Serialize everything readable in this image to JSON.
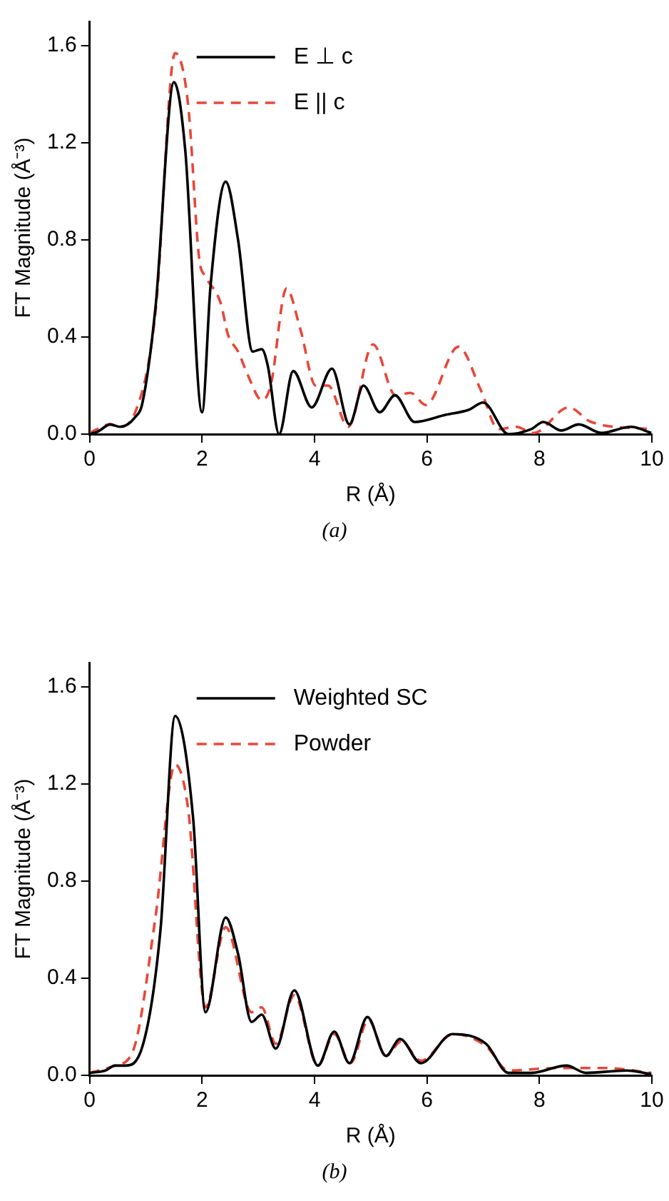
{
  "chart_data": [
    {
      "type": "line",
      "xlabel": "R (Å)",
      "ylabel": "FT Magnitude (Å⁻³)",
      "annotations": [
        "(a)"
      ],
      "xlim": [
        0,
        10
      ],
      "ylim": [
        0,
        1.7
      ],
      "xticks": [
        0,
        2,
        4,
        6,
        8,
        10
      ],
      "yticks": [
        {
          "value": 0,
          "label": "0.0"
        },
        {
          "value": 0.4,
          "label": "0.4"
        },
        {
          "value": 0.8,
          "label": "0.8"
        },
        {
          "value": 1.2,
          "label": "1.2"
        },
        {
          "value": 1.6,
          "label": "1.6"
        }
      ],
      "grid": false,
      "legend": "top",
      "marker": "none",
      "series": [
        {
          "name": "E ⊥ c",
          "color": "#000000",
          "line_style": "solid",
          "x": [
            0,
            0.14,
            0.37,
            0.54,
            0.81,
            0.94,
            1.17,
            1.5,
            1.7,
            2.0,
            2.15,
            2.42,
            2.64,
            2.9,
            3.06,
            3.17,
            3.37,
            3.62,
            3.95,
            4.31,
            4.62,
            4.87,
            5.16,
            5.43,
            5.78,
            6.34,
            6.74,
            7.0,
            7.45,
            7.85,
            8.07,
            8.39,
            8.7,
            9.1,
            9.63,
            9.99
          ],
          "values": [
            0,
            0.01,
            0.04,
            0.03,
            0.07,
            0.13,
            0.52,
            1.45,
            1.17,
            0.09,
            0.61,
            1.04,
            0.8,
            0.34,
            0.35,
            0.28,
            0,
            0.26,
            0.11,
            0.27,
            0.04,
            0.2,
            0.09,
            0.16,
            0.05,
            0.08,
            0.1,
            0.13,
            0,
            0.02,
            0.05,
            0.015,
            0.04,
            0.005,
            0.03,
            0.005
          ]
        },
        {
          "name": "E || c",
          "color": "#e8473a",
          "line_style": "dashed",
          "x": [
            0,
            0.37,
            0.5,
            0.81,
            1.17,
            1.52,
            1.75,
            1.95,
            2.06,
            2.33,
            2.46,
            2.64,
            2.82,
            3.06,
            3.22,
            3.5,
            3.75,
            4.02,
            4.24,
            4.6,
            5.04,
            5.44,
            5.71,
            5.98,
            6.56,
            6.96,
            7.27,
            7.58,
            7.9,
            8.52,
            8.92,
            9.99
          ],
          "values": [
            0.005,
            0.04,
            0.03,
            0.09,
            0.5,
            1.57,
            1.36,
            0.72,
            0.65,
            0.54,
            0.41,
            0.34,
            0.24,
            0.14,
            0.2,
            0.6,
            0.43,
            0.2,
            0.2,
            0.03,
            0.37,
            0.16,
            0.17,
            0.12,
            0.36,
            0.18,
            0.02,
            0.03,
            0.005,
            0.11,
            0.05,
            0.02
          ]
        }
      ]
    },
    {
      "type": "line",
      "xlabel": "R (Å)",
      "ylabel": "FT Magnitude (Å⁻³)",
      "annotations": [
        "(b)"
      ],
      "xlim": [
        0,
        10
      ],
      "ylim": [
        0,
        1.7
      ],
      "xticks": [
        0,
        2,
        4,
        6,
        8,
        10
      ],
      "yticks": [
        {
          "value": 0,
          "label": "0.0"
        },
        {
          "value": 0.4,
          "label": "0.4"
        },
        {
          "value": 0.8,
          "label": "0.8"
        },
        {
          "value": 1.2,
          "label": "1.2"
        },
        {
          "value": 1.6,
          "label": "1.6"
        }
      ],
      "grid": false,
      "legend": "top",
      "marker": "none",
      "series": [
        {
          "name": "Weighted SC",
          "color": "#000000",
          "line_style": "solid",
          "x": [
            0,
            0.28,
            0.45,
            0.63,
            0.94,
            1.26,
            1.52,
            1.84,
            2.06,
            2.42,
            2.64,
            2.88,
            3.06,
            3.31,
            3.64,
            4.06,
            4.35,
            4.62,
            4.94,
            5.27,
            5.52,
            5.89,
            6.45,
            7.05,
            7.45,
            7.85,
            8.48,
            8.83,
            9.55,
            9.99
          ],
          "values": [
            0.01,
            0.02,
            0.04,
            0.04,
            0.12,
            0.6,
            1.48,
            1.06,
            0.26,
            0.65,
            0.5,
            0.22,
            0.25,
            0.11,
            0.35,
            0.04,
            0.18,
            0.05,
            0.24,
            0.08,
            0.15,
            0.05,
            0.17,
            0.13,
            0.01,
            0.01,
            0.04,
            0.01,
            0.02,
            0.005
          ]
        },
        {
          "name": "Powder",
          "color": "#e8473a",
          "line_style": "dashed",
          "x": [
            0,
            0.45,
            0.77,
            1.17,
            1.52,
            1.75,
            2.06,
            2.42,
            2.88,
            3.06,
            3.31,
            3.64,
            4.06,
            4.35,
            4.64,
            4.96,
            5.27,
            5.54,
            5.89,
            6.47,
            7.05,
            7.45,
            8.3,
            9.19,
            9.99
          ],
          "values": [
            0.01,
            0.04,
            0.1,
            0.65,
            1.28,
            1.1,
            0.28,
            0.61,
            0.26,
            0.28,
            0.13,
            0.33,
            0.04,
            0.17,
            0.05,
            0.23,
            0.08,
            0.14,
            0.06,
            0.17,
            0.12,
            0.02,
            0.03,
            0.03,
            0.01
          ]
        }
      ]
    }
  ]
}
